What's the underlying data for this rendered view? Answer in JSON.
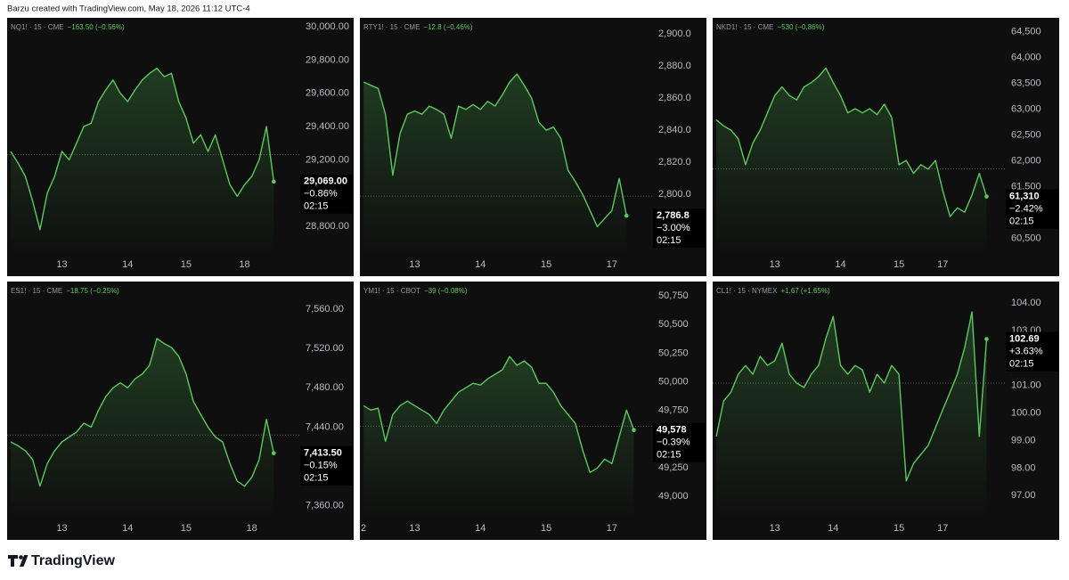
{
  "header": "Barzu created with TradingView.com, May 18, 2026 11:12 UTC-4",
  "footer": "TradingView",
  "chart_data": [
    {
      "type": "line",
      "symbol": "NQ1! · 15 · CME",
      "change": "−163.50 (−0.56%)",
      "color": "#5cc95c",
      "categories": [
        null,
        null,
        null,
        null,
        null,
        null,
        null,
        "13",
        null,
        null,
        null,
        null,
        null,
        null,
        null,
        null,
        "14",
        null,
        null,
        null,
        null,
        null,
        null,
        null,
        "15",
        null,
        null,
        null,
        null,
        null,
        null,
        null,
        "18",
        null,
        null,
        null,
        null,
        null,
        null,
        null
      ],
      "values": [
        29250,
        29180,
        29100,
        28950,
        28780,
        29000,
        29100,
        29250,
        29200,
        29300,
        29400,
        29420,
        29550,
        29620,
        29680,
        29600,
        29550,
        29620,
        29680,
        29720,
        29750,
        29700,
        29720,
        29550,
        29450,
        29300,
        29350,
        29250,
        29350,
        29200,
        29050,
        28980,
        29050,
        29100,
        29200,
        29400,
        29069,
        null,
        null,
        null
      ],
      "ylim": [
        28634,
        30054
      ],
      "yticks": [
        {
          "value": 28800,
          "label": "28,800.00"
        },
        {
          "value": 29000,
          "label": "29,000.00"
        },
        {
          "value": 29200,
          "label": "29,200.00"
        },
        {
          "value": 29400,
          "label": "29,400.00"
        },
        {
          "value": 29600,
          "label": "29,600.00"
        },
        {
          "value": 29800,
          "label": "29,800.00"
        },
        {
          "value": 30000,
          "label": "30,000.00"
        }
      ],
      "prev_close": 29230,
      "last_price": {
        "value": 29069,
        "label": "29,069.00"
      },
      "last_change": "−0.86%",
      "countdown": "02:15"
    },
    {
      "type": "line",
      "symbol": "RTY1! · 15 · CME",
      "change": "−12.8 (−0.46%)",
      "color": "#5cc95c",
      "categories": [
        null,
        null,
        null,
        null,
        null,
        null,
        null,
        "13",
        null,
        null,
        null,
        null,
        null,
        null,
        null,
        null,
        "14",
        null,
        null,
        null,
        null,
        null,
        null,
        null,
        null,
        "15",
        null,
        null,
        null,
        null,
        null,
        null,
        null,
        null,
        "17",
        null,
        null,
        null,
        null,
        null
      ],
      "values": [
        2870,
        2868,
        2866,
        2850,
        2812,
        2838,
        2850,
        2852,
        2850,
        2855,
        2853,
        2850,
        2835,
        2855,
        2853,
        2856,
        2853,
        2858,
        2855,
        2862,
        2870,
        2875,
        2868,
        2860,
        2845,
        2840,
        2842,
        2835,
        2815,
        2808,
        2800,
        2790,
        2780,
        2785,
        2790,
        2810,
        2786.8,
        null,
        null,
        null
      ],
      "ylim": [
        2763,
        2910
      ],
      "yticks": [
        {
          "value": 2800,
          "label": "2,800.0"
        },
        {
          "value": 2820,
          "label": "2,820.0"
        },
        {
          "value": 2840,
          "label": "2,840.0"
        },
        {
          "value": 2860,
          "label": "2,860.0"
        },
        {
          "value": 2880,
          "label": "2,880.0"
        },
        {
          "value": 2900,
          "label": "2,900.0"
        }
      ],
      "prev_close": 2799,
      "last_price": {
        "value": 2786.8,
        "label": "2,786.8"
      },
      "last_change": "−3.00%",
      "countdown": "02:15"
    },
    {
      "type": "line",
      "symbol": "NKD1! · 15 · CME",
      "change": "−530 (−0.86%)",
      "color": "#5cc95c",
      "categories": [
        null,
        null,
        null,
        null,
        null,
        null,
        null,
        null,
        "13",
        null,
        null,
        null,
        null,
        null,
        null,
        null,
        null,
        "14",
        null,
        null,
        null,
        null,
        null,
        null,
        null,
        "15",
        null,
        null,
        null,
        null,
        null,
        "17",
        null,
        null,
        null,
        null,
        null,
        null,
        null,
        null
      ],
      "values": [
        62794,
        62677,
        62594,
        62426,
        61925,
        62343,
        62594,
        62928,
        63262,
        63430,
        63262,
        63180,
        63430,
        63514,
        63630,
        63798,
        63514,
        63262,
        62928,
        63010,
        62928,
        63010,
        62894,
        63095,
        62844,
        61925,
        62008,
        61757,
        61925,
        61841,
        62008,
        61423,
        60921,
        61090,
        61006,
        61340,
        61757,
        61310,
        null,
        null
      ],
      "ylim": [
        60199,
        64768
      ],
      "yticks": [
        {
          "value": 60500,
          "label": "60,500"
        },
        {
          "value": 61000,
          "label": "61,000"
        },
        {
          "value": 61500,
          "label": "61,500"
        },
        {
          "value": 62000,
          "label": "62,000"
        },
        {
          "value": 62500,
          "label": "62,500"
        },
        {
          "value": 63000,
          "label": "63,000"
        },
        {
          "value": 63500,
          "label": "63,500"
        },
        {
          "value": 64000,
          "label": "64,000"
        },
        {
          "value": 64500,
          "label": "64,500"
        }
      ],
      "prev_close": 61841,
      "last_price": {
        "value": 61310,
        "label": "61,310"
      },
      "last_change": "−2.42%",
      "countdown": "02:15"
    },
    {
      "type": "line",
      "symbol": "ES1! · 15 · CME",
      "change": "−18.75 (−0.25%)",
      "color": "#5cc95c",
      "categories": [
        null,
        null,
        null,
        null,
        null,
        null,
        null,
        "13",
        null,
        null,
        null,
        null,
        null,
        null,
        null,
        null,
        "14",
        null,
        null,
        null,
        null,
        null,
        null,
        null,
        "15",
        null,
        null,
        null,
        null,
        null,
        null,
        null,
        null,
        "18",
        null,
        null,
        null,
        null,
        null,
        null
      ],
      "values": [
        7425,
        7421,
        7416,
        7407,
        7380,
        7403,
        7416,
        7425,
        7430,
        7435,
        7444,
        7440,
        7457,
        7471,
        7480,
        7485,
        7480,
        7489,
        7494,
        7503,
        7530,
        7525,
        7521,
        7512,
        7494,
        7466,
        7453,
        7440,
        7430,
        7425,
        7403,
        7385,
        7380,
        7389,
        7407,
        7448,
        7413.5,
        null,
        null,
        null
      ],
      "ylim": [
        7348,
        7588
      ],
      "yticks": [
        {
          "value": 7360,
          "label": "7,360.00"
        },
        {
          "value": 7400,
          "label": "7,400.00"
        },
        {
          "value": 7440,
          "label": "7,440.00"
        },
        {
          "value": 7480,
          "label": "7,480.00"
        },
        {
          "value": 7520,
          "label": "7,520.00"
        },
        {
          "value": 7560,
          "label": "7,560.00"
        }
      ],
      "prev_close": 7432,
      "last_price": {
        "value": 7413.5,
        "label": "7,413.50"
      },
      "last_change": "−0.15%",
      "countdown": "02:15"
    },
    {
      "type": "line",
      "symbol": "YM1! · 15 · CBOT",
      "change": "−39 (−0.08%)",
      "color": "#5cc95c",
      "categories": [
        "2",
        null,
        null,
        null,
        null,
        null,
        null,
        "13",
        null,
        null,
        null,
        null,
        null,
        null,
        null,
        null,
        "14",
        null,
        null,
        null,
        null,
        null,
        null,
        null,
        null,
        "15",
        null,
        null,
        null,
        null,
        null,
        null,
        null,
        null,
        "17",
        null,
        null,
        null,
        null,
        null
      ],
      "values": [
        49792,
        49753,
        49769,
        49480,
        49714,
        49792,
        49831,
        49792,
        49753,
        49714,
        49636,
        49753,
        49831,
        49909,
        49948,
        49987,
        49971,
        50026,
        50065,
        50104,
        50220,
        50143,
        50182,
        50127,
        49987,
        49987,
        49909,
        49792,
        49714,
        49636,
        49403,
        49208,
        49247,
        49325,
        49286,
        49520,
        49753,
        49578,
        null,
        null
      ],
      "ylim": [
        48814,
        50875
      ],
      "yticks": [
        {
          "value": 49000,
          "label": "49,000"
        },
        {
          "value": 49250,
          "label": "49,250"
        },
        {
          "value": 49500,
          "label": "49,500"
        },
        {
          "value": 49750,
          "label": "49,750"
        },
        {
          "value": 50000,
          "label": "50,000"
        },
        {
          "value": 50250,
          "label": "50,250"
        },
        {
          "value": 50500,
          "label": "50,500"
        },
        {
          "value": 50750,
          "label": "50,750"
        }
      ],
      "prev_close": 49613,
      "last_price": {
        "value": 49578,
        "label": "49,578"
      },
      "last_change": "−0.39%",
      "countdown": "02:15"
    },
    {
      "type": "line",
      "symbol": "CL1! · 15 · NYMEX",
      "change": "+1.67 (+1.65%)",
      "color": "#5cc95c",
      "categories": [
        null,
        null,
        null,
        null,
        null,
        null,
        null,
        null,
        "13",
        null,
        null,
        null,
        null,
        null,
        null,
        null,
        "14",
        null,
        null,
        null,
        null,
        null,
        null,
        null,
        null,
        "15",
        null,
        null,
        null,
        null,
        null,
        "17",
        null,
        null,
        null,
        null,
        null,
        null,
        null,
        null
      ],
      "values": [
        99.15,
        100.44,
        100.76,
        101.41,
        101.73,
        101.41,
        102.06,
        101.73,
        101.9,
        102.54,
        101.41,
        101.09,
        100.93,
        101.41,
        101.73,
        102.71,
        103.51,
        101.73,
        101.41,
        101.73,
        101.57,
        100.76,
        101.41,
        101.09,
        101.73,
        101.41,
        97.53,
        98.17,
        98.5,
        98.82,
        99.47,
        100.12,
        100.76,
        101.41,
        102.38,
        103.68,
        99.15,
        102.69,
        null,
        null
      ],
      "ylim": [
        96.2,
        104.78
      ],
      "yticks": [
        {
          "value": 97,
          "label": "97.00"
        },
        {
          "value": 98,
          "label": "98.00"
        },
        {
          "value": 99,
          "label": "99.00"
        },
        {
          "value": 100,
          "label": "100.00"
        },
        {
          "value": 101,
          "label": "101.00"
        },
        {
          "value": 102,
          "label": "102.00"
        },
        {
          "value": 103,
          "label": "103.00"
        },
        {
          "value": 104,
          "label": "104.00"
        }
      ],
      "prev_close": 101.09,
      "last_price": {
        "value": 102.69,
        "label": "102.69"
      },
      "last_change": "+3.63%",
      "countdown": "02:15"
    }
  ]
}
